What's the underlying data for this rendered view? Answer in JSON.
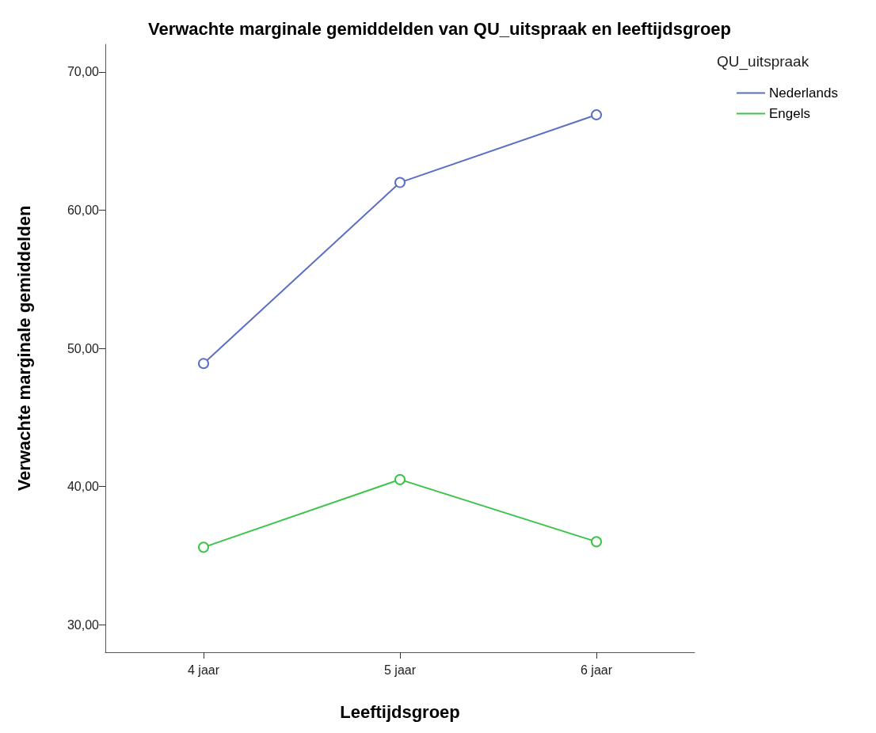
{
  "chart_data": {
    "type": "line",
    "title": "Verwachte marginale gemiddelden van QU_uitspraak en leeftijdsgroep",
    "xlabel": "Leeftijdsgroep",
    "ylabel": "Verwachte marginale gemiddelden",
    "legend_title": "QU_uitspraak",
    "categories": [
      "4 jaar",
      "5 jaar",
      "6 jaar"
    ],
    "series": [
      {
        "name": "Nederlands",
        "color": "#5b6fc4",
        "values": [
          48.9,
          62.0,
          66.9
        ]
      },
      {
        "name": "Engels",
        "color": "#3cc44a",
        "values": [
          35.6,
          40.5,
          36.0
        ]
      }
    ],
    "ylim": [
      28,
      72
    ],
    "yticks": [
      {
        "value": 30,
        "label": "30,00"
      },
      {
        "value": 40,
        "label": "40,00"
      },
      {
        "value": 50,
        "label": "50,00"
      },
      {
        "value": 60,
        "label": "60,00"
      },
      {
        "value": 70,
        "label": "70,00"
      }
    ],
    "grid": false,
    "legend": "top right",
    "marker": "circle",
    "line_style": "solid"
  }
}
